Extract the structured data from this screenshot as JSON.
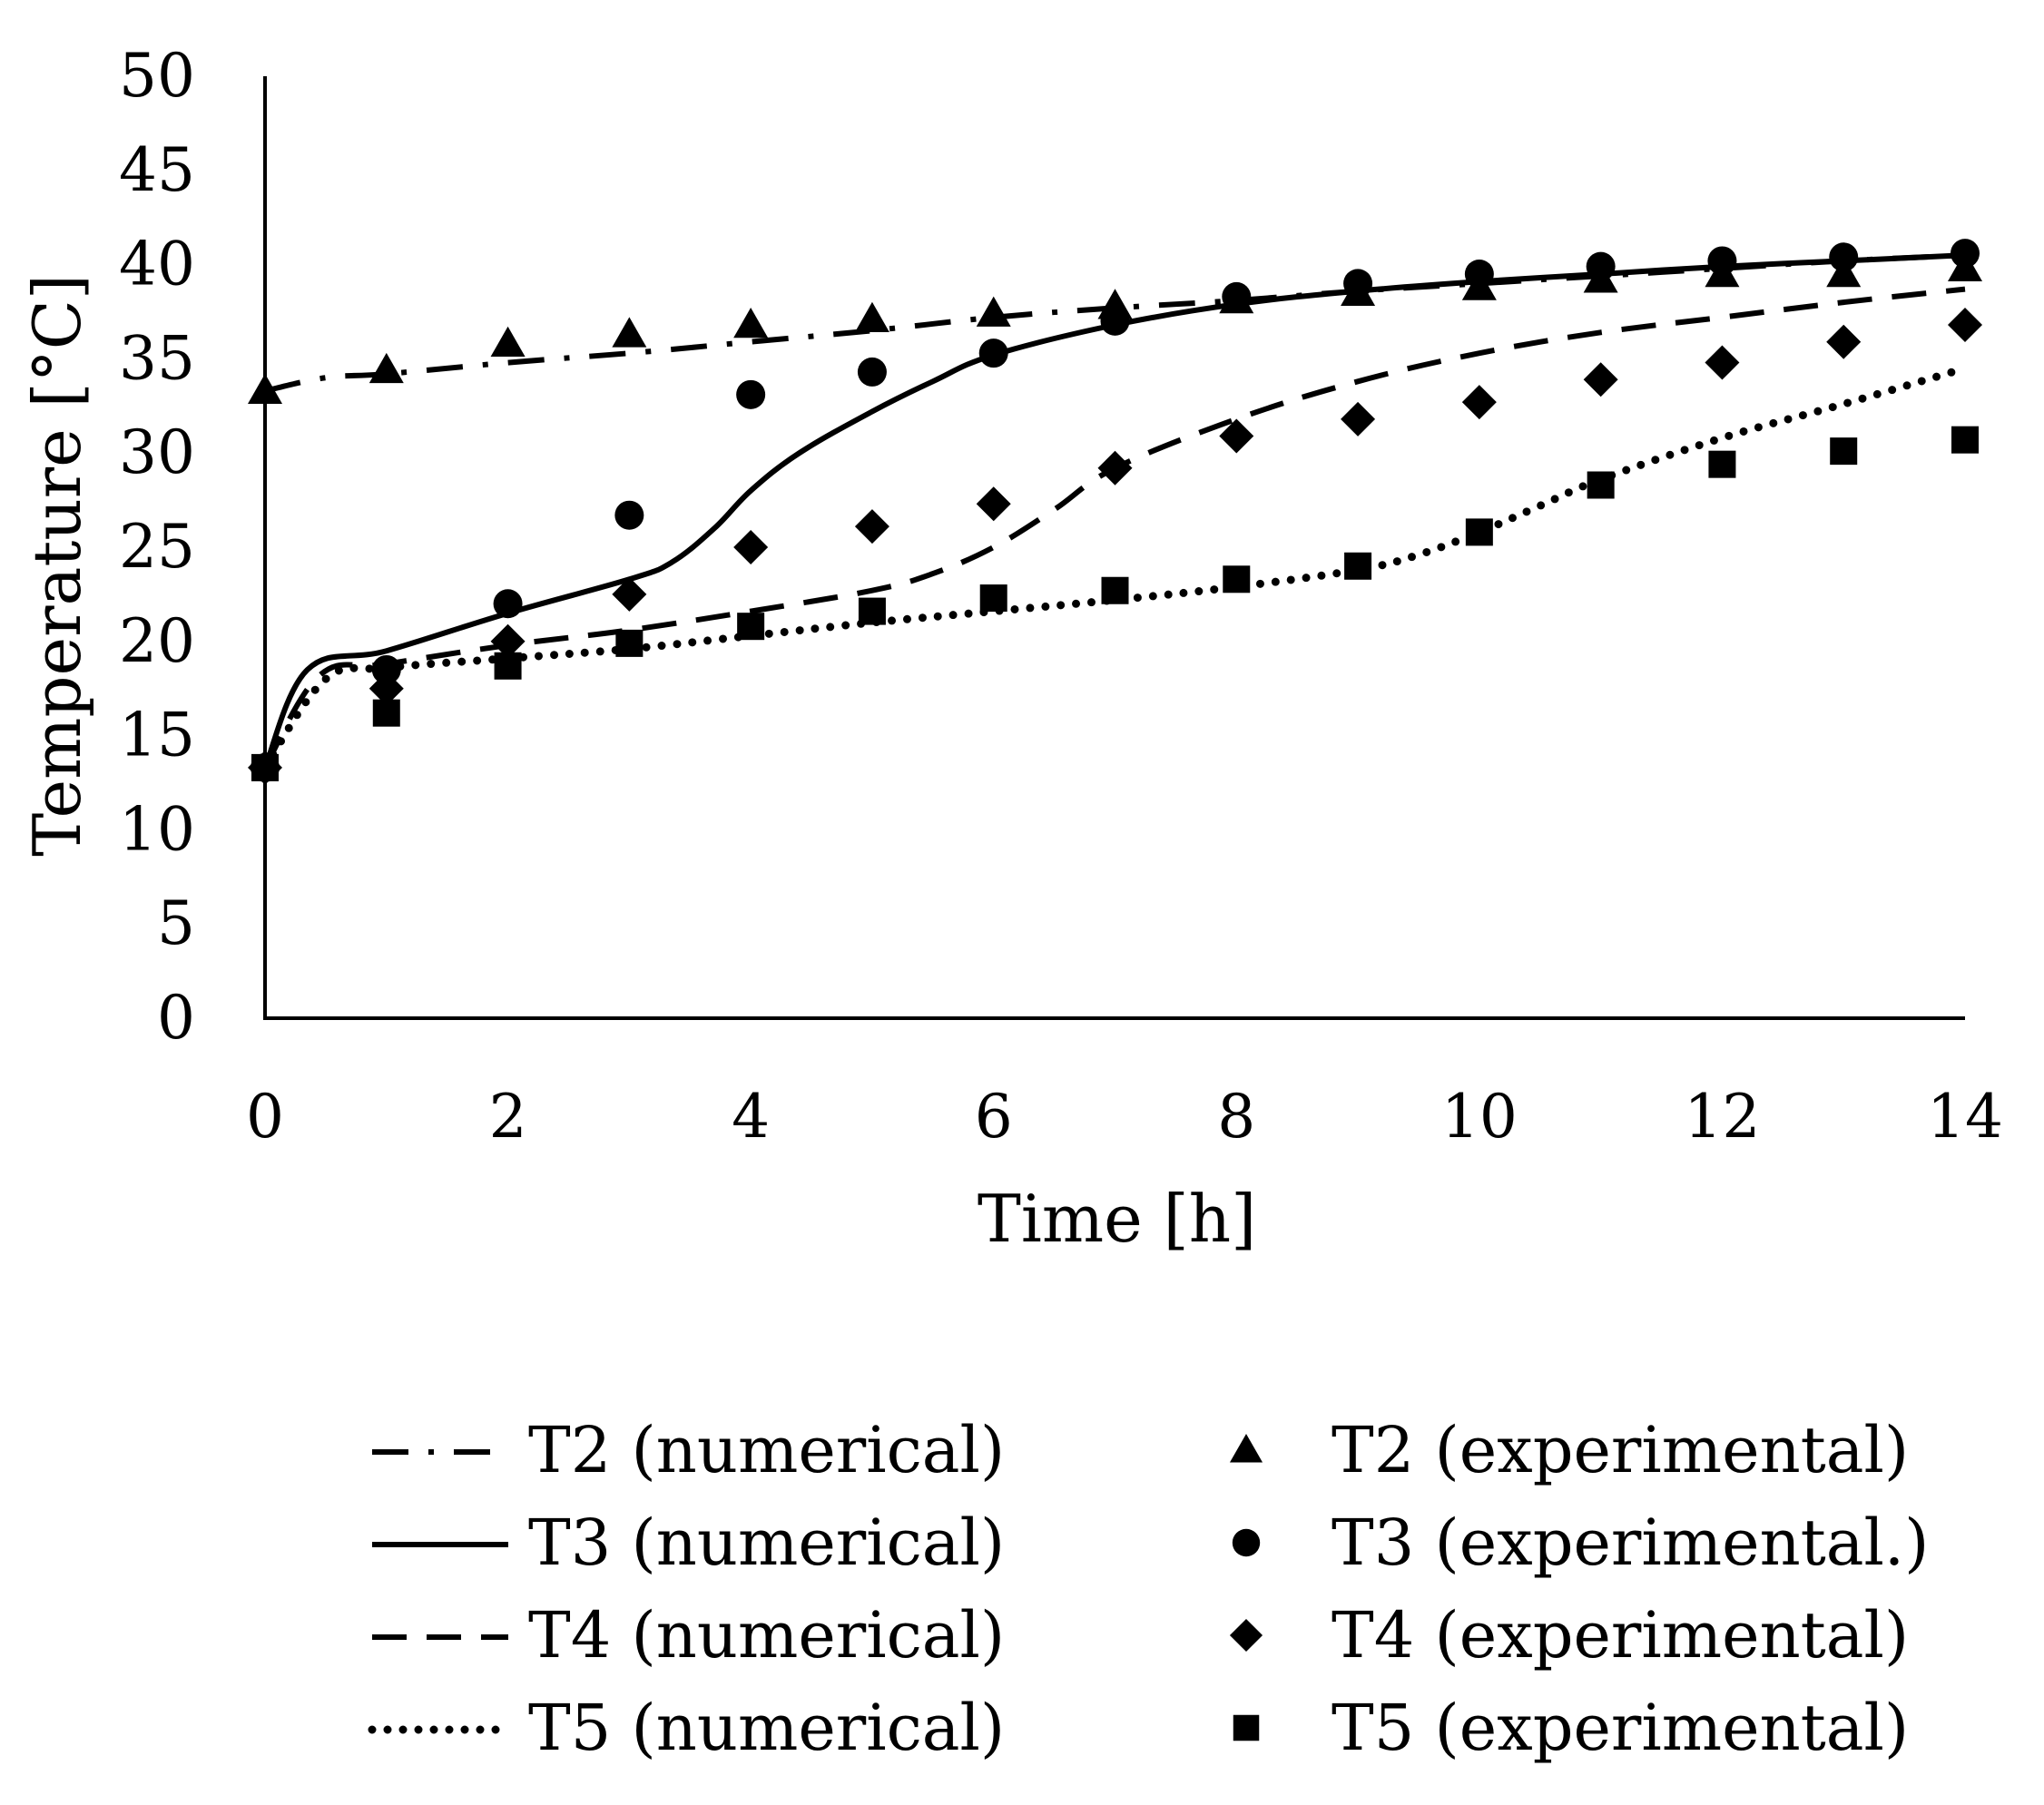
{
  "chart_data": {
    "type": "line",
    "title": "",
    "xlabel": "Time [h]",
    "ylabel": "Temperature [°C]",
    "xlim": [
      0,
      14
    ],
    "ylim": [
      0,
      50
    ],
    "xticks": [
      "0",
      "2",
      "4",
      "6",
      "8",
      "10",
      "12",
      "14"
    ],
    "yticks": [
      "0",
      "5",
      "10",
      "15",
      "20",
      "25",
      "30",
      "35",
      "40",
      "45",
      "50"
    ],
    "grid": false,
    "legend_position": "bottom",
    "series": [
      {
        "name": "T2 (numerical)",
        "kind": "line",
        "style": "dash-dot",
        "color": "#000000",
        "x": [
          0,
          0.5,
          1,
          2,
          3,
          4,
          5,
          6,
          7,
          8,
          9,
          10,
          11,
          12,
          13,
          14
        ],
        "y": [
          33.3,
          34.0,
          34.2,
          34.8,
          35.3,
          35.9,
          36.5,
          37.2,
          37.7,
          38.1,
          38.6,
          39.0,
          39.4,
          39.8,
          40.2,
          40.5
        ]
      },
      {
        "name": "T3 (numerical)",
        "kind": "line",
        "style": "solid",
        "color": "#000000",
        "x": [
          0,
          0.35,
          1,
          2,
          3,
          3.35,
          3.7,
          4,
          4.4,
          5,
          5.5,
          6,
          7,
          8,
          9,
          10,
          11,
          12,
          13,
          14
        ],
        "y": [
          13.3,
          18.5,
          19.5,
          21.5,
          23.3,
          24.2,
          26.0,
          28.0,
          30.0,
          32.2,
          33.8,
          35.2,
          36.8,
          37.9,
          38.6,
          39.1,
          39.5,
          39.9,
          40.2,
          40.5
        ]
      },
      {
        "name": "T4 (numerical)",
        "kind": "line",
        "style": "dashed",
        "color": "#000000",
        "x": [
          0,
          0.45,
          1,
          2,
          3,
          4,
          5,
          5.5,
          6,
          6.5,
          7,
          8,
          9,
          10,
          11,
          12,
          13,
          14
        ],
        "y": [
          13.3,
          18.2,
          18.8,
          19.8,
          20.6,
          21.6,
          22.7,
          23.6,
          25.0,
          27.0,
          29.2,
          31.8,
          33.8,
          35.3,
          36.4,
          37.2,
          38.0,
          38.7
        ]
      },
      {
        "name": "T5 (numerical)",
        "kind": "line",
        "style": "dotted",
        "color": "#000000",
        "x": [
          0,
          0.5,
          1,
          2,
          3,
          4,
          5,
          6,
          7,
          8,
          9,
          9.5,
          10,
          10.5,
          11,
          12,
          13,
          14
        ],
        "y": [
          13.3,
          18.0,
          18.6,
          19.1,
          19.6,
          20.3,
          21.0,
          21.6,
          22.2,
          22.9,
          23.8,
          24.6,
          25.8,
          27.2,
          28.6,
          30.8,
          32.6,
          34.5
        ]
      },
      {
        "name": "T2 (experimental)",
        "kind": "marker",
        "marker": "triangle",
        "color": "#000000",
        "x": [
          0,
          1,
          2,
          3,
          4,
          5,
          6,
          7,
          8,
          9,
          10,
          11,
          12,
          13,
          14
        ],
        "y": [
          33.3,
          34.4,
          35.8,
          36.3,
          36.8,
          37.1,
          37.4,
          37.8,
          38.1,
          38.5,
          38.8,
          39.2,
          39.5,
          39.5,
          39.8
        ]
      },
      {
        "name": "T3 (experimental.)",
        "kind": "marker",
        "marker": "circle",
        "color": "#000000",
        "x": [
          0,
          1,
          2,
          3,
          4,
          5,
          6,
          7,
          8,
          9,
          10,
          11,
          12,
          13,
          14
        ],
        "y": [
          13.3,
          18.5,
          22.0,
          26.7,
          33.1,
          34.3,
          35.3,
          37.0,
          38.3,
          39.0,
          39.5,
          39.9,
          40.2,
          40.4,
          40.6
        ]
      },
      {
        "name": "T4 (experimental)",
        "kind": "marker",
        "marker": "diamond",
        "color": "#000000",
        "x": [
          0,
          1,
          2,
          3,
          4,
          5,
          6,
          7,
          8,
          9,
          10,
          11,
          12,
          13,
          14
        ],
        "y": [
          13.3,
          17.5,
          20.0,
          22.5,
          25.0,
          26.1,
          27.3,
          29.2,
          30.9,
          31.8,
          32.7,
          33.9,
          34.8,
          35.9,
          36.8
        ]
      },
      {
        "name": "T5 (experimental)",
        "kind": "marker",
        "marker": "square",
        "color": "#000000",
        "x": [
          0,
          1,
          2,
          3,
          4,
          5,
          6,
          7,
          8,
          9,
          10,
          11,
          12,
          13,
          14
        ],
        "y": [
          13.3,
          16.2,
          18.7,
          19.9,
          20.8,
          21.6,
          22.3,
          22.7,
          23.3,
          24.0,
          25.8,
          28.3,
          29.4,
          30.1,
          30.7
        ]
      }
    ]
  }
}
